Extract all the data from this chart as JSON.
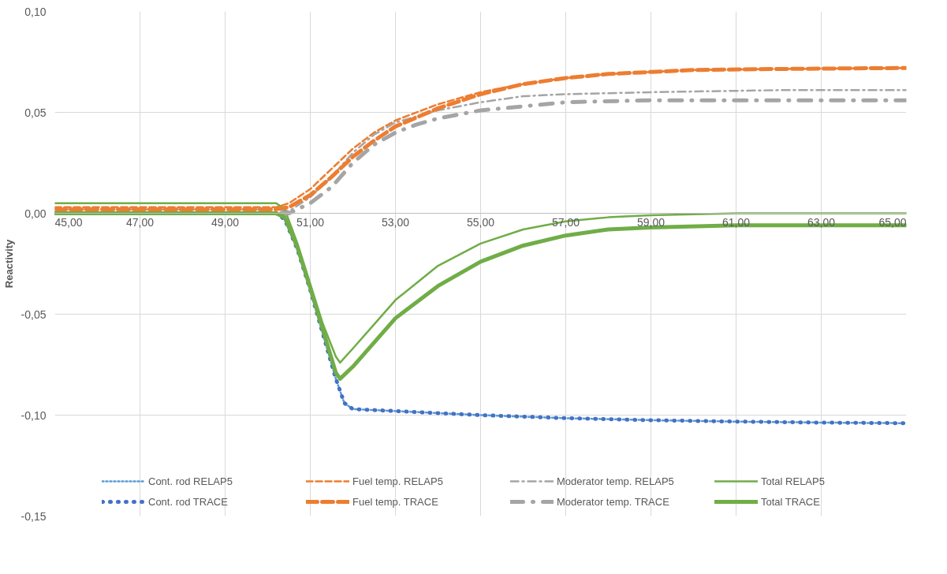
{
  "chart_data": {
    "type": "line",
    "ylabel": "Reactivity",
    "xlim": [
      45,
      65
    ],
    "ylim": [
      -0.15,
      0.1
    ],
    "xticks": [
      {
        "value": 45,
        "label": "45,00"
      },
      {
        "value": 47,
        "label": "47,00"
      },
      {
        "value": 49,
        "label": "49,00"
      },
      {
        "value": 51,
        "label": "51,00"
      },
      {
        "value": 53,
        "label": "53,00"
      },
      {
        "value": 55,
        "label": "55,00"
      },
      {
        "value": 57,
        "label": "57,00"
      },
      {
        "value": 59,
        "label": "59,00"
      },
      {
        "value": 61,
        "label": "61,00"
      },
      {
        "value": 63,
        "label": "63,00"
      },
      {
        "value": 65,
        "label": "65,00"
      }
    ],
    "yticks": [
      {
        "value": -0.15,
        "label": "-0,15"
      },
      {
        "value": -0.1,
        "label": "-0,10"
      },
      {
        "value": -0.05,
        "label": "-0,05"
      },
      {
        "value": 0,
        "label": "0,00"
      },
      {
        "value": 0.05,
        "label": "0,05"
      },
      {
        "value": 0.1,
        "label": "0,10"
      }
    ],
    "grid": true,
    "legend": "bottom",
    "marker": "none",
    "series": [
      {
        "name": "Cont. rod RELAP5",
        "color": "#5b9bd5",
        "line_style": "dotted",
        "x": [
          45,
          50.2,
          50.4,
          50.7,
          51,
          51.3,
          51.6,
          51.8,
          52,
          53,
          55,
          57,
          59,
          61,
          63,
          65
        ],
        "values": [
          0,
          0,
          -0.003,
          -0.018,
          -0.038,
          -0.06,
          -0.082,
          -0.094,
          -0.097,
          -0.098,
          -0.1,
          -0.1015,
          -0.1025,
          -0.1032,
          -0.1037,
          -0.104
        ]
      },
      {
        "name": "Fuel temp. RELAP5",
        "color": "#ed7d31",
        "line_style": "dashed",
        "x": [
          45,
          50.2,
          50.5,
          51,
          51.5,
          52,
          52.5,
          53,
          54,
          55,
          56,
          57,
          58,
          59,
          60,
          62,
          65
        ],
        "values": [
          0.003,
          0.003,
          0.005,
          0.012,
          0.022,
          0.032,
          0.04,
          0.046,
          0.054,
          0.06,
          0.064,
          0.067,
          0.069,
          0.07,
          0.071,
          0.0715,
          0.072
        ]
      },
      {
        "name": "Moderator temp. RELAP5",
        "color": "#a5a5a5",
        "line_style": "dashdot",
        "x": [
          45,
          50.2,
          50.5,
          51,
          51.5,
          52,
          52.5,
          53,
          54,
          55,
          56,
          57,
          59,
          62,
          65
        ],
        "values": [
          0.002,
          0.002,
          0.001,
          0.008,
          0.018,
          0.03,
          0.039,
          0.045,
          0.051,
          0.055,
          0.058,
          0.059,
          0.06,
          0.061,
          0.061
        ]
      },
      {
        "name": "Total RELAP5",
        "color": "#70ad47",
        "line_style": "solid",
        "x": [
          45,
          50.2,
          50.4,
          50.7,
          51,
          51.3,
          51.6,
          51.7,
          52,
          52.5,
          53,
          54,
          55,
          56,
          57,
          58,
          59,
          61,
          65
        ],
        "values": [
          0.005,
          0.005,
          0.002,
          -0.015,
          -0.035,
          -0.055,
          -0.071,
          -0.074,
          -0.067,
          -0.055,
          -0.043,
          -0.026,
          -0.015,
          -0.008,
          -0.004,
          -0.002,
          -0.001,
          0,
          0
        ]
      },
      {
        "name": "Cont. rod TRACE",
        "color": "#4472c4",
        "line_style": "dotted",
        "x": [
          45,
          50.2,
          50.4,
          50.7,
          51,
          51.3,
          51.6,
          51.8,
          52,
          53,
          55,
          57,
          59,
          61,
          63,
          65
        ],
        "values": [
          0,
          0,
          -0.003,
          -0.018,
          -0.038,
          -0.06,
          -0.082,
          -0.094,
          -0.097,
          -0.098,
          -0.1,
          -0.1015,
          -0.1025,
          -0.1032,
          -0.1037,
          -0.104
        ]
      },
      {
        "name": "Fuel temp. TRACE",
        "color": "#ed7d31",
        "line_style": "dashed",
        "x": [
          45,
          50.2,
          50.5,
          51,
          51.5,
          52,
          52.5,
          53,
          54,
          55,
          56,
          57,
          58,
          59,
          60,
          62,
          65
        ],
        "values": [
          0.002,
          0.002,
          0.003,
          0.009,
          0.018,
          0.028,
          0.036,
          0.043,
          0.052,
          0.059,
          0.064,
          0.067,
          0.069,
          0.07,
          0.071,
          0.0715,
          0.072
        ]
      },
      {
        "name": "Moderator temp. TRACE",
        "color": "#a5a5a5",
        "line_style": "dashdot",
        "x": [
          45,
          50.2,
          50.5,
          51,
          51.5,
          52,
          52.5,
          53,
          53.5,
          54,
          55,
          56,
          57,
          59,
          65
        ],
        "values": [
          0,
          0,
          0,
          0.005,
          0.013,
          0.025,
          0.034,
          0.04,
          0.044,
          0.047,
          0.051,
          0.053,
          0.055,
          0.056,
          0.056
        ]
      },
      {
        "name": "Total TRACE",
        "color": "#70ad47",
        "line_style": "solid",
        "x": [
          45,
          50.2,
          50.4,
          50.7,
          51,
          51.3,
          51.6,
          51.7,
          52,
          52.5,
          53,
          54,
          55,
          56,
          57,
          58,
          59,
          61,
          65
        ],
        "values": [
          0,
          0,
          -0.002,
          -0.017,
          -0.037,
          -0.058,
          -0.079,
          -0.082,
          -0.076,
          -0.064,
          -0.052,
          -0.036,
          -0.024,
          -0.016,
          -0.011,
          -0.008,
          -0.007,
          -0.006,
          -0.006
        ]
      }
    ]
  }
}
